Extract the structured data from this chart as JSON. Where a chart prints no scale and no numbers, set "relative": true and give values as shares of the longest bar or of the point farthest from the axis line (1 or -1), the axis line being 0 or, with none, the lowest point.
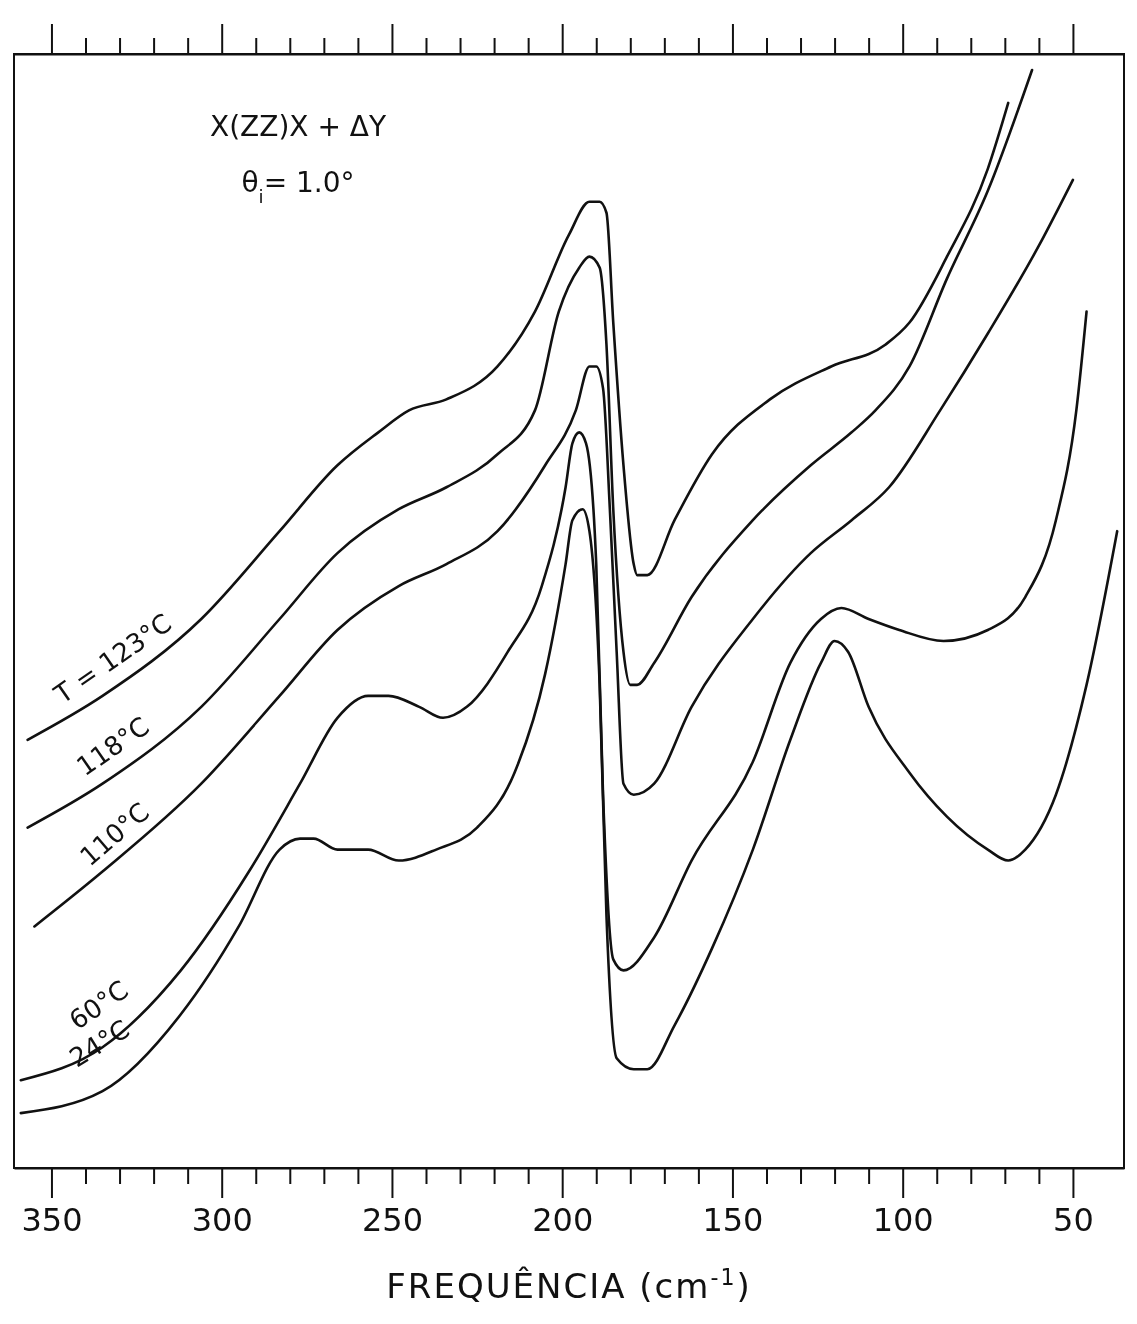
{
  "chart_data": {
    "type": "line",
    "relative": true,
    "xlabel": "FREQUÊNCIA (cm$^{-1}$)",
    "annotations": [
      "X(ZZ)X + ΔY",
      "θ$_{i}$= 1.0°"
    ],
    "xlim": [
      361,
      35
    ],
    "xticks": [
      350,
      {
        "value": 340,
        "label": null
      },
      {
        "value": 330,
        "label": null
      },
      {
        "value": 320,
        "label": null
      },
      {
        "value": 310,
        "label": null
      },
      300,
      {
        "value": 290,
        "label": null
      },
      {
        "value": 280,
        "label": null
      },
      {
        "value": 270,
        "label": null
      },
      {
        "value": 260,
        "label": null
      },
      250,
      {
        "value": 240,
        "label": null
      },
      {
        "value": 230,
        "label": null
      },
      {
        "value": 220,
        "label": null
      },
      {
        "value": 210,
        "label": null
      },
      200,
      {
        "value": 190,
        "label": null
      },
      {
        "value": 180,
        "label": null
      },
      {
        "value": 170,
        "label": null
      },
      {
        "value": 160,
        "label": null
      },
      150,
      {
        "value": 140,
        "label": null
      },
      {
        "value": 130,
        "label": null
      },
      {
        "value": 120,
        "label": null
      },
      {
        "value": 110,
        "label": null
      },
      100,
      {
        "value": 90,
        "label": null
      },
      {
        "value": 80,
        "label": null
      },
      {
        "value": 70,
        "label": null
      },
      {
        "value": 60,
        "label": null
      },
      50
    ],
    "tick_labels": "x",
    "grid": false,
    "legend": false,
    "marker": "none",
    "line_style": "solid",
    "series": [
      {
        "name": "T = 123°C",
        "color": "#111111",
        "x": [
          357,
          335,
          306,
          283,
          266,
          254,
          245,
          234,
          219,
          208,
          198,
          192,
          189,
          187,
          185,
          182,
          179,
          178,
          175,
          167,
          156,
          139,
          121,
          105,
          98,
          87,
          75,
          69
        ],
        "values": [
          0.39,
          0.43,
          0.5,
          0.58,
          0.64,
          0.67,
          0.69,
          0.7,
          0.73,
          0.78,
          0.85,
          0.88,
          0.88,
          0.87,
          0.77,
          0.64,
          0.55,
          0.54,
          0.54,
          0.59,
          0.65,
          0.7,
          0.73,
          0.75,
          0.77,
          0.83,
          0.91,
          0.97
        ]
      },
      {
        "name": "118°C",
        "color": "#111111",
        "x": [
          357,
          335,
          306,
          283,
          266,
          248,
          234,
          219,
          208,
          201,
          195,
          192,
          189,
          187,
          185,
          182,
          180,
          178,
          173,
          162,
          144,
          127,
          115,
          108,
          98,
          87,
          75,
          62
        ],
        "values": [
          0.31,
          0.35,
          0.42,
          0.5,
          0.56,
          0.6,
          0.62,
          0.65,
          0.69,
          0.78,
          0.82,
          0.83,
          0.82,
          0.75,
          0.6,
          0.47,
          0.44,
          0.44,
          0.46,
          0.52,
          0.59,
          0.64,
          0.67,
          0.69,
          0.73,
          0.81,
          0.89,
          1.0
        ]
      },
      {
        "name": "110°C",
        "color": "#111111",
        "x": [
          355,
          335,
          306,
          283,
          266,
          248,
          234,
          219,
          205,
          196,
          192,
          190,
          188,
          186,
          184,
          182,
          179,
          173,
          162,
          144,
          127,
          115,
          104,
          89,
          75,
          60,
          50
        ],
        "values": [
          0.22,
          0.27,
          0.35,
          0.43,
          0.49,
          0.53,
          0.55,
          0.58,
          0.64,
          0.69,
          0.73,
          0.73,
          0.71,
          0.6,
          0.47,
          0.35,
          0.34,
          0.35,
          0.42,
          0.5,
          0.56,
          0.59,
          0.62,
          0.69,
          0.76,
          0.84,
          0.9
        ]
      },
      {
        "name": "60°C",
        "color": "#111111",
        "x": [
          359,
          335,
          312,
          292,
          277,
          266,
          257,
          251,
          242,
          235,
          228,
          216,
          206,
          199,
          197,
          195,
          193,
          190,
          188,
          185,
          182,
          173,
          162,
          144,
          133,
          124,
          118,
          110,
          101,
          88,
          75,
          64,
          55,
          49,
          46
        ],
        "values": [
          0.08,
          0.11,
          0.18,
          0.27,
          0.35,
          0.41,
          0.43,
          0.43,
          0.42,
          0.41,
          0.42,
          0.47,
          0.53,
          0.62,
          0.66,
          0.67,
          0.66,
          0.55,
          0.34,
          0.19,
          0.18,
          0.21,
          0.28,
          0.37,
          0.46,
          0.5,
          0.51,
          0.5,
          0.49,
          0.48,
          0.49,
          0.52,
          0.59,
          0.69,
          0.78
        ]
      },
      {
        "name": "24°C",
        "color": "#111111",
        "x": [
          359,
          335,
          312,
          295,
          283,
          277,
          273,
          266,
          257,
          248,
          237,
          225,
          214,
          205,
          199,
          197,
          194,
          192,
          189,
          187,
          184,
          179,
          175,
          167,
          156,
          144,
          133,
          124,
          120,
          116,
          110,
          98,
          87,
          75,
          69,
          64,
          55,
          46,
          37
        ],
        "values": [
          0.05,
          0.07,
          0.14,
          0.22,
          0.29,
          0.3,
          0.3,
          0.29,
          0.29,
          0.28,
          0.29,
          0.31,
          0.36,
          0.45,
          0.55,
          0.59,
          0.6,
          0.58,
          0.44,
          0.23,
          0.1,
          0.09,
          0.09,
          0.13,
          0.2,
          0.29,
          0.39,
          0.46,
          0.48,
          0.47,
          0.42,
          0.36,
          0.32,
          0.29,
          0.28,
          0.29,
          0.34,
          0.44,
          0.58
        ]
      }
    ]
  }
}
